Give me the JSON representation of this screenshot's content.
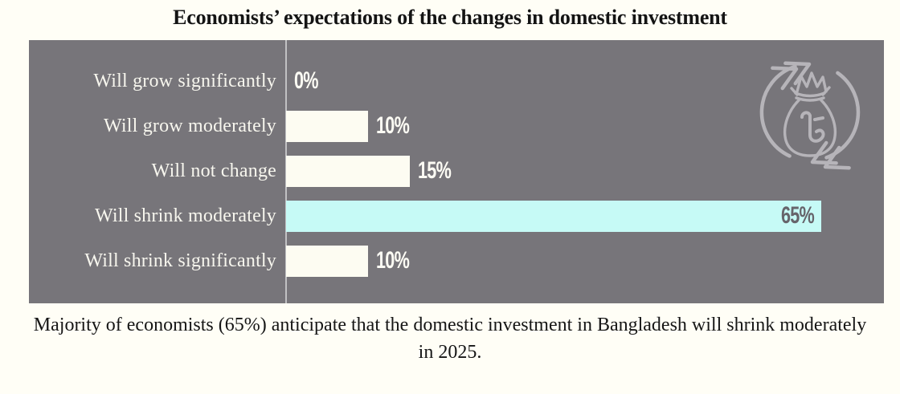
{
  "title": "Economists’ expectations of the changes in domestic investment",
  "caption_lines": [
    "Majority of economists (65%) anticipate that the domestic investment in Bangladesh will shrink moderately",
    "in 2025."
  ],
  "icon": {
    "name": "money-bag-cycle-icon",
    "symbol": "taka-sign",
    "color": "#b6b4b9"
  },
  "colors": {
    "page_bg": "#fffef6",
    "panel_bg": "#77757a",
    "bar": "#fdfcf2",
    "bar_highlight": "#c6faf6",
    "label_text": "#f7f6ee",
    "value_text": "#fcfbf4",
    "value_text_highlight": "#66646b",
    "title_text": "#141414",
    "caption_text": "#161616"
  },
  "chart_data": {
    "type": "bar",
    "orientation": "horizontal",
    "title": "Economists’ expectations of the changes in domestic investment",
    "categories": [
      "Will grow significantly",
      "Will grow moderately",
      "Will not change",
      "Will shrink moderately",
      "Will shrink significantly"
    ],
    "values": [
      0,
      10,
      15,
      65,
      10
    ],
    "value_labels": [
      "0%",
      "10%",
      "15%",
      "65%",
      "10%"
    ],
    "highlighted_category": "Will shrink moderately",
    "highlight_label_position": "inside-end",
    "xlim": [
      0,
      72
    ],
    "grid": false,
    "legend": false
  }
}
